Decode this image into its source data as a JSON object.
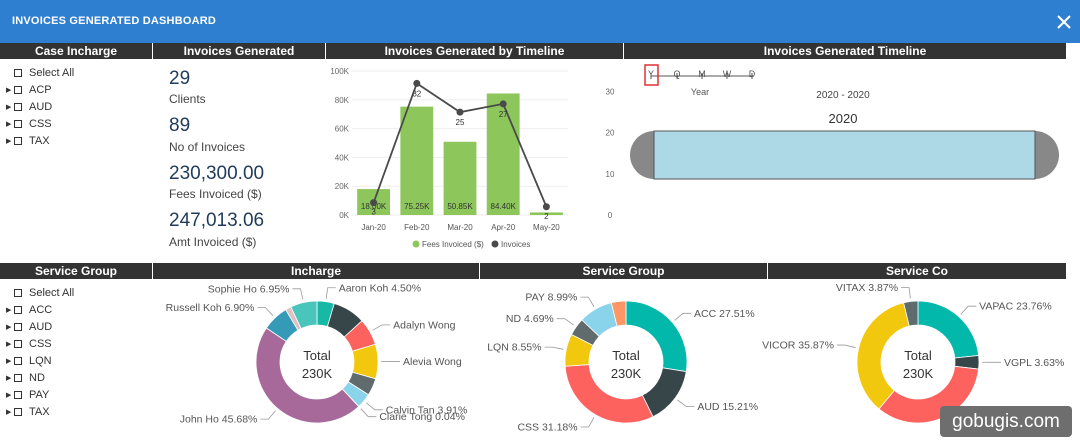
{
  "window": {
    "title": "INVOICES GENERATED DASHBOARD",
    "close_icon": "close-icon"
  },
  "headers": {
    "case_incharge": "Case Incharge",
    "invoices_generated": "Invoices Generated",
    "by_timeline": "Invoices Generated by Timeline",
    "timeline": "Invoices Generated Timeline",
    "service_group_slicer": "Service Group",
    "incharge": "Incharge",
    "service_group": "Service Group",
    "service_co": "Service Co"
  },
  "case_incharge_items": [
    "Select All",
    "ACP",
    "AUD",
    "CSS",
    "TAX"
  ],
  "service_group_items": [
    "Select All",
    "ACC",
    "AUD",
    "CSS",
    "LQN",
    "ND",
    "PAY",
    "TAX"
  ],
  "kpis": [
    {
      "value": "29",
      "label": "Clients"
    },
    {
      "value": "89",
      "label": "No of Invoices"
    },
    {
      "value": "230,300.00",
      "label": "Fees Invoiced ($)"
    },
    {
      "value": "247,013.06",
      "label": "Amt Invoiced ($)"
    }
  ],
  "chart_data": [
    {
      "type": "bar",
      "categories": [
        "Jan-20",
        "Feb-20",
        "Mar-20",
        "Apr-20",
        "May-20"
      ],
      "series": [
        {
          "name": "Fees Invoiced ($)",
          "type": "bar",
          "axis": "left",
          "values": [
            18000,
            75250,
            50850,
            84400,
            1800
          ],
          "labels": [
            "18.00K",
            "75.25K",
            "50.85K",
            "84.40K",
            ""
          ]
        },
        {
          "name": "Invoices",
          "type": "line",
          "axis": "right",
          "values": [
            3,
            32,
            25,
            27,
            2
          ],
          "labels": [
            "3",
            "32",
            "25",
            "27",
            "2"
          ]
        }
      ],
      "ylim_left": [
        0,
        100000
      ],
      "yticks_left": [
        "0K",
        "20K",
        "40K",
        "60K",
        "80K",
        "100K"
      ],
      "ylim_right": [
        0,
        35
      ],
      "yticks_right": [
        "0",
        "10",
        "20",
        "30"
      ],
      "colors": {
        "bar": "#8dc65b",
        "line": "#4a4a4a"
      },
      "legend": "bottom"
    },
    {
      "type": "pie",
      "donut": true,
      "center_label": [
        "Total",
        "230K"
      ],
      "slices": [
        {
          "label": "Aaron Koh 4.50%",
          "value": 4.5,
          "color": "#17b8a6"
        },
        {
          "label": "",
          "value": 8.5,
          "color": "#374649"
        },
        {
          "label": "Adalyn Wong",
          "value": 7.0,
          "color": "#fd625e"
        },
        {
          "label": "Alevia Wong",
          "value": 9.0,
          "color": "#f2c80f"
        },
        {
          "label": "",
          "value": 4.5,
          "color": "#5f6b6d"
        },
        {
          "label": "Calvin Tan 3.91%",
          "value": 3.91,
          "color": "#8ad4eb"
        },
        {
          "label": "Clarie Tong 0.04%",
          "value": 0.04,
          "color": "#fe9666"
        },
        {
          "label": "John Ho 45.68%",
          "value": 45.68,
          "color": "#a66999"
        },
        {
          "label": "Russell Koh 6.90%",
          "value": 6.9,
          "color": "#3599b8"
        },
        {
          "label": "",
          "value": 1.5,
          "color": "#dfbfbf"
        },
        {
          "label": "Sophie Ho 6.95%",
          "value": 6.95,
          "color": "#4ac5bb"
        }
      ]
    },
    {
      "type": "pie",
      "donut": true,
      "center_label": [
        "Total",
        "230K"
      ],
      "slices": [
        {
          "label": "ACC 27.51%",
          "value": 27.51,
          "color": "#01b8aa"
        },
        {
          "label": "AUD 15.21%",
          "value": 15.21,
          "color": "#374649"
        },
        {
          "label": "CSS 31.18%",
          "value": 31.18,
          "color": "#fd625e"
        },
        {
          "label": "LQN 8.55%",
          "value": 8.55,
          "color": "#f2c80f"
        },
        {
          "label": "ND 4.69%",
          "value": 4.69,
          "color": "#5f6b6d"
        },
        {
          "label": "PAY 8.99%",
          "value": 8.99,
          "color": "#8ad4eb"
        },
        {
          "label": "",
          "value": 3.87,
          "color": "#fe9666"
        }
      ]
    },
    {
      "type": "pie",
      "donut": true,
      "center_label": [
        "Total",
        "230K"
      ],
      "slices": [
        {
          "label": "VAPAC 23.76%",
          "value": 23.76,
          "color": "#01b8aa"
        },
        {
          "label": "VGPL 3.63%",
          "value": 3.63,
          "color": "#374649"
        },
        {
          "label": "",
          "value": 34.88,
          "color": "#fd625e"
        },
        {
          "label": "VICOR 35.87%",
          "value": 35.87,
          "color": "#f2c80f"
        },
        {
          "label": "VITAX 3.87%",
          "value": 3.87,
          "color": "#5f6b6d"
        }
      ]
    }
  ],
  "timeline": {
    "granularities": [
      "Y",
      "Q",
      "M",
      "W",
      "D"
    ],
    "selected": "Y",
    "selected_name": "Year",
    "range": "2020 - 2020",
    "period": "2020"
  },
  "watermark": "gobugis.com"
}
